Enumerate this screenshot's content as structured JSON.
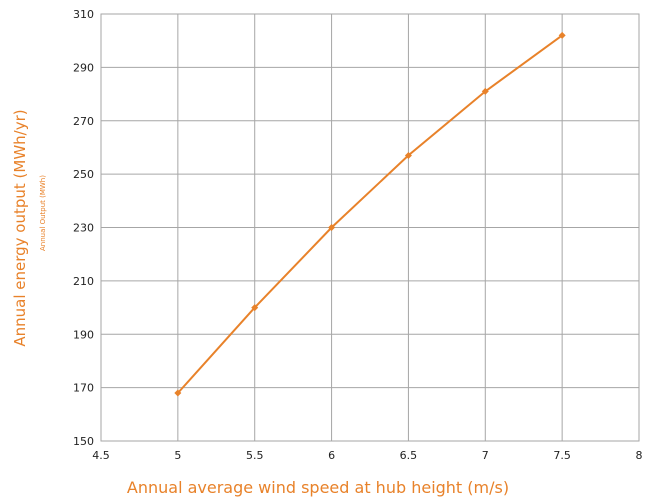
{
  "chart_data": {
    "type": "line",
    "title": "",
    "xlabel": "Annual average wind speed at hub height (m/s)",
    "ylabel": "Annual energy output (MWh/yr)",
    "ylabel_secondary": "Annual Output (MWh)",
    "xlim": [
      4.5,
      8
    ],
    "ylim": [
      150,
      310
    ],
    "x_ticks": [
      "4.5",
      "5",
      "5.5",
      "6",
      "6.5",
      "7",
      "7.5",
      "8"
    ],
    "y_ticks": [
      "150",
      "170",
      "190",
      "210",
      "230",
      "250",
      "270",
      "290",
      "310"
    ],
    "grid": true,
    "legend": "none",
    "series": [
      {
        "color": "#e8822a",
        "marker": "diamond",
        "x": [
          5,
          5.5,
          6,
          6.5,
          7,
          7.5
        ],
        "y": [
          168,
          200,
          230,
          257,
          281,
          302
        ]
      }
    ]
  },
  "colors": {
    "series": "#e8822a",
    "grid": "#a6a6a6",
    "tick_text": "#222222"
  }
}
